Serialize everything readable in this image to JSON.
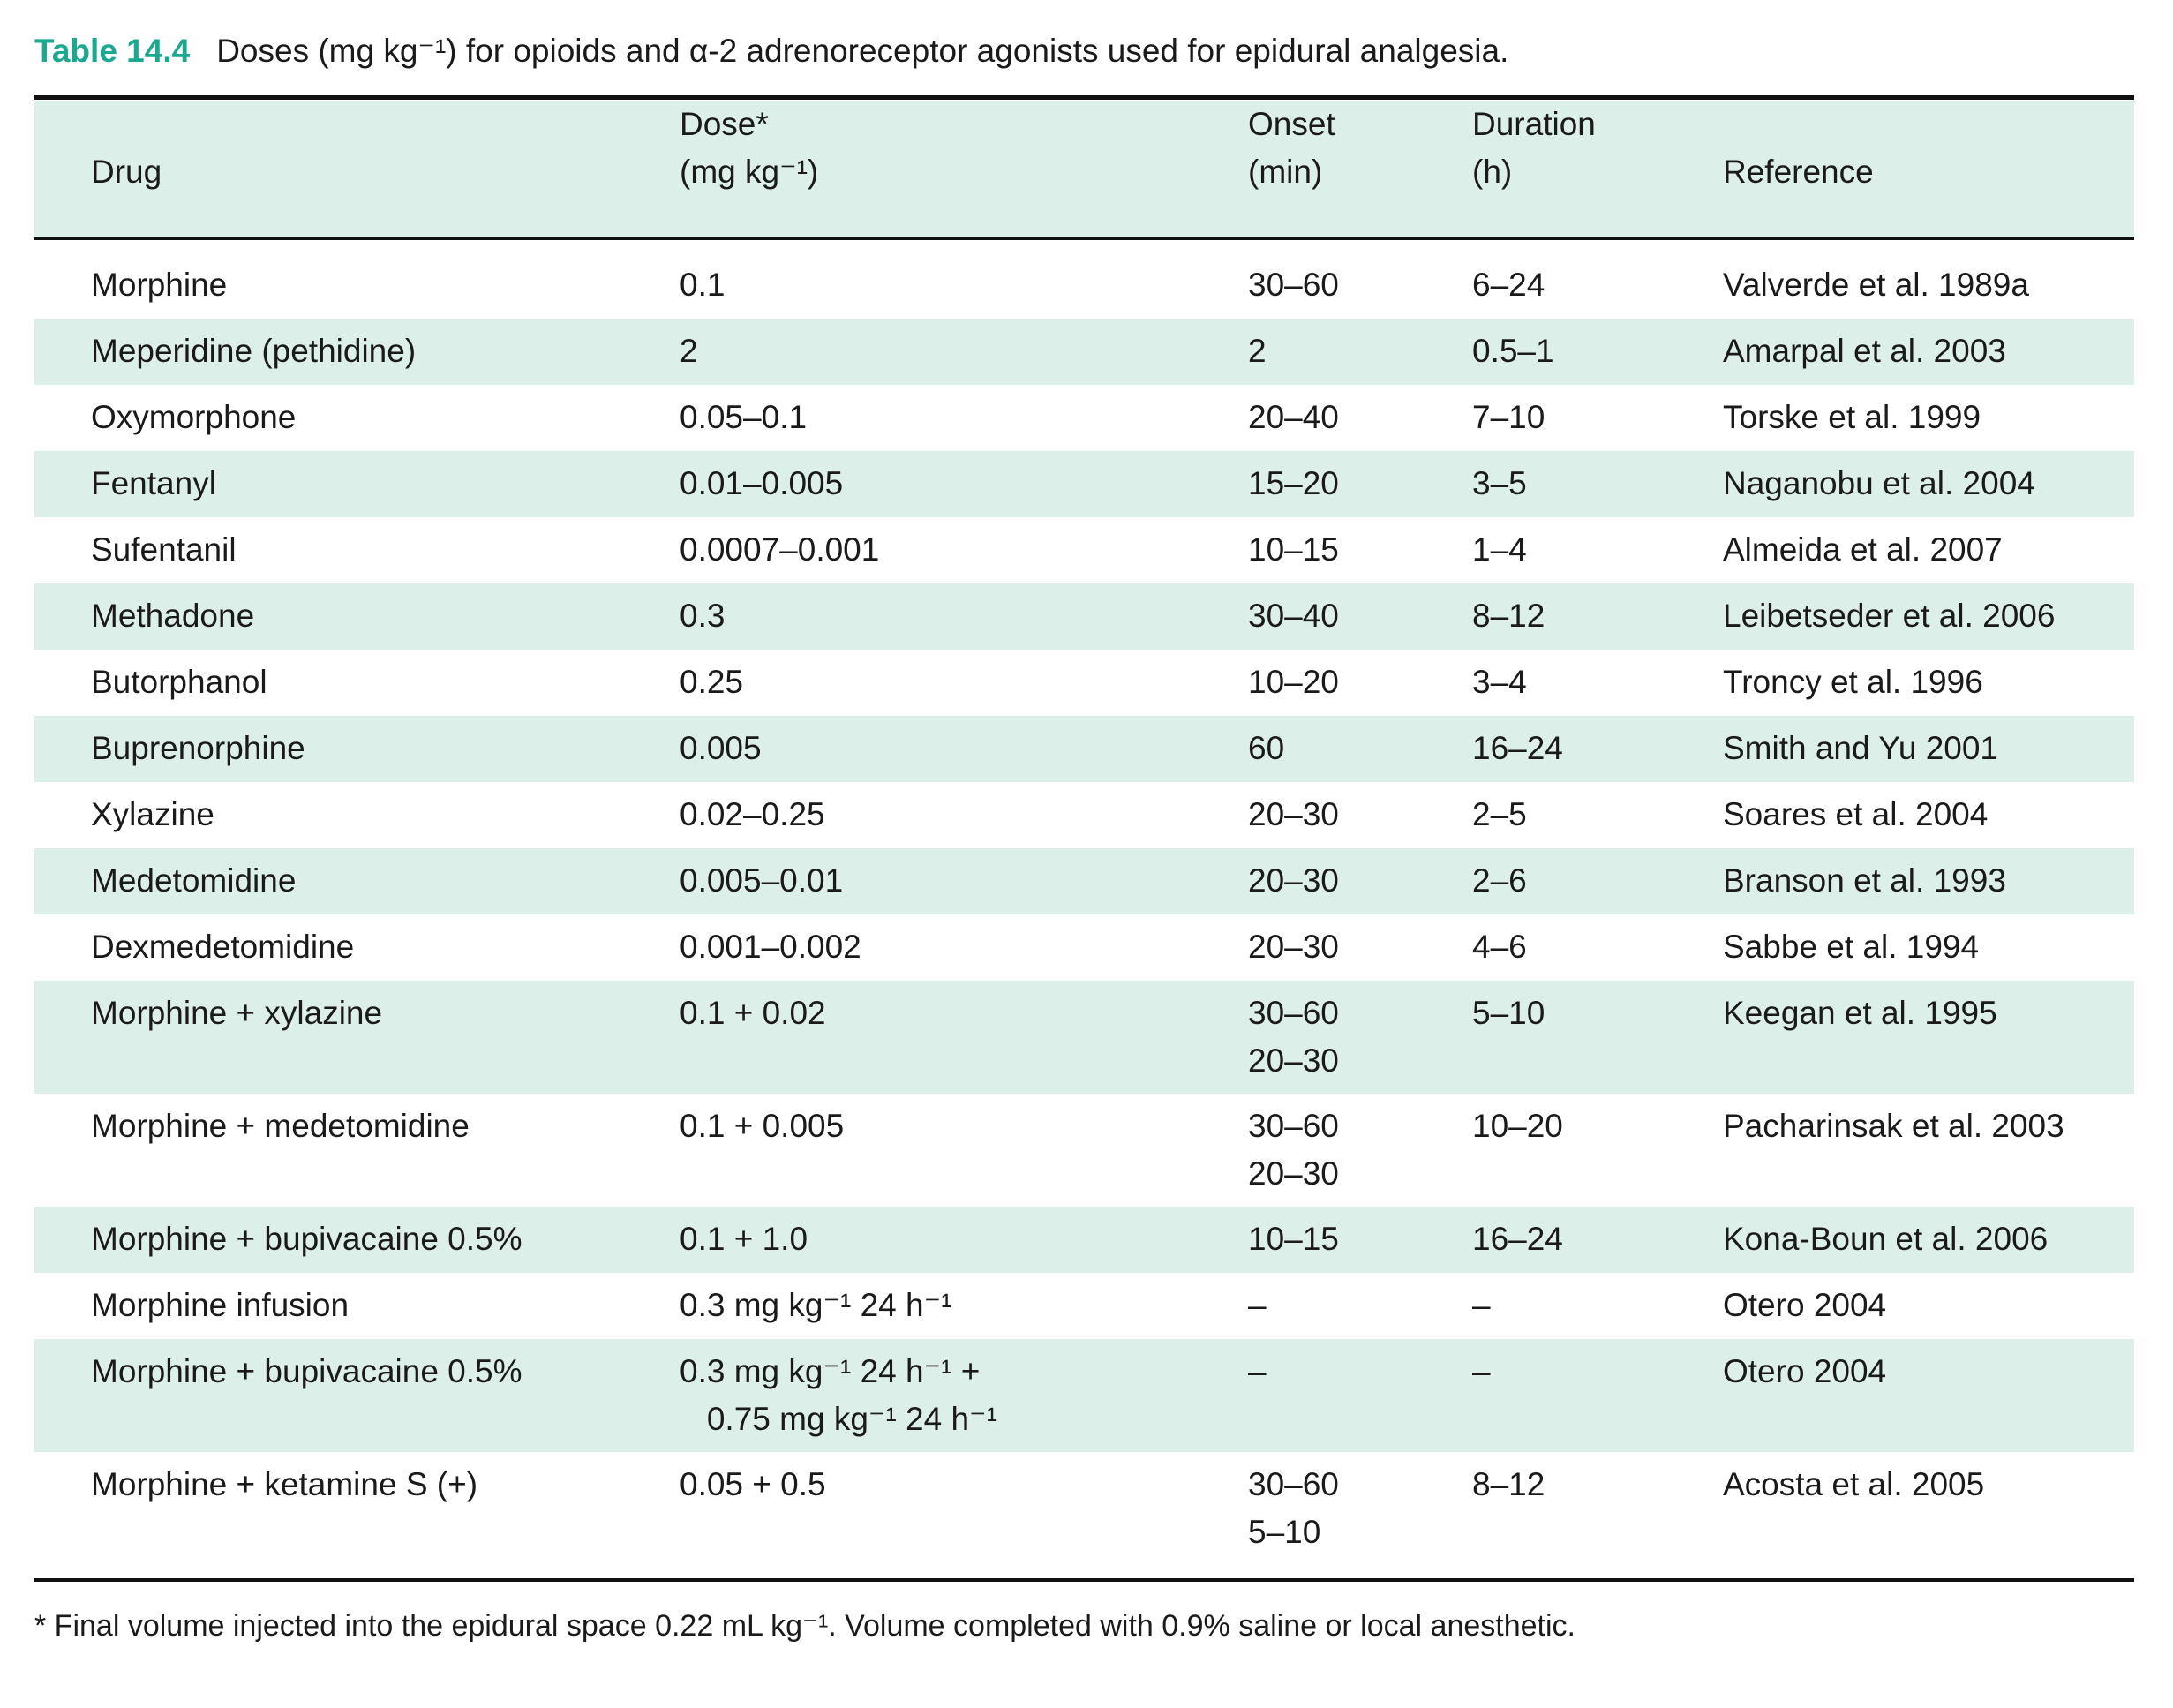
{
  "caption": {
    "label": "Table 14.4",
    "text": "Doses (mg kg⁻¹) for opioids and α-2 adrenoreceptor agonists used for epidural analgesia."
  },
  "colors": {
    "accent": "#1aa88f",
    "row_shade": "#dcefe9"
  },
  "columns": [
    "Drug",
    "Dose*\n(mg kg⁻¹)",
    "Onset\n(min)",
    "Duration\n(h)",
    "Reference"
  ],
  "rows": [
    {
      "drug": "Morphine",
      "dose": "0.1",
      "onset": "30–60",
      "duration": "6–24",
      "reference": "Valverde et al. 1989a"
    },
    {
      "drug": "Meperidine (pethidine)",
      "dose": "2",
      "onset": "2",
      "duration": "0.5–1",
      "reference": "Amarpal et al. 2003"
    },
    {
      "drug": "Oxymorphone",
      "dose": "0.05–0.1",
      "onset": "20–40",
      "duration": "7–10",
      "reference": "Torske et al. 1999"
    },
    {
      "drug": "Fentanyl",
      "dose": "0.01–0.005",
      "onset": "15–20",
      "duration": "3–5",
      "reference": "Naganobu et al. 2004"
    },
    {
      "drug": "Sufentanil",
      "dose": "0.0007–0.001",
      "onset": "10–15",
      "duration": "1–4",
      "reference": "Almeida et al. 2007"
    },
    {
      "drug": "Methadone",
      "dose": "0.3",
      "onset": "30–40",
      "duration": "8–12",
      "reference": "Leibetseder et al. 2006"
    },
    {
      "drug": "Butorphanol",
      "dose": "0.25",
      "onset": "10–20",
      "duration": "3–4",
      "reference": "Troncy et al. 1996"
    },
    {
      "drug": "Buprenorphine",
      "dose": "0.005",
      "onset": "60",
      "duration": "16–24",
      "reference": "Smith and Yu 2001"
    },
    {
      "drug": "Xylazine",
      "dose": "0.02–0.25",
      "onset": "20–30",
      "duration": "2–5",
      "reference": "Soares et al. 2004"
    },
    {
      "drug": "Medetomidine",
      "dose": "0.005–0.01",
      "onset": "20–30",
      "duration": "2–6",
      "reference": "Branson et al. 1993"
    },
    {
      "drug": "Dexmedetomidine",
      "dose": "0.001–0.002",
      "onset": "20–30",
      "duration": "4–6",
      "reference": "Sabbe et al. 1994"
    },
    {
      "drug": "Morphine + xylazine",
      "dose": "0.1 + 0.02",
      "onset": "30–60\n20–30",
      "duration": "5–10",
      "reference": "Keegan et al. 1995"
    },
    {
      "drug": "Morphine + medetomidine",
      "dose": "0.1 + 0.005",
      "onset": "30–60\n20–30",
      "duration": "10–20",
      "reference": "Pacharinsak et al. 2003"
    },
    {
      "drug": "Morphine + bupivacaine 0.5%",
      "dose": "0.1 + 1.0",
      "onset": "10–15",
      "duration": "16–24",
      "reference": "Kona-Boun et al. 2006"
    },
    {
      "drug": "Morphine infusion",
      "dose": "0.3 mg kg⁻¹ 24 h⁻¹",
      "onset": "–",
      "duration": "–",
      "reference": "Otero 2004"
    },
    {
      "drug": "Morphine + bupivacaine 0.5%",
      "dose": "0.3 mg kg⁻¹ 24 h⁻¹ +\n   0.75 mg kg⁻¹ 24 h⁻¹",
      "onset": "–",
      "duration": "–",
      "reference": "Otero 2004"
    },
    {
      "drug": "Morphine + ketamine S (+)",
      "dose": "0.05 + 0.5",
      "onset": "30–60\n5–10",
      "duration": "8–12",
      "reference": "Acosta et al. 2005"
    }
  ],
  "footnote": "* Final volume injected into the epidural space 0.22 mL kg⁻¹. Volume completed with 0.9% saline or local anesthetic."
}
